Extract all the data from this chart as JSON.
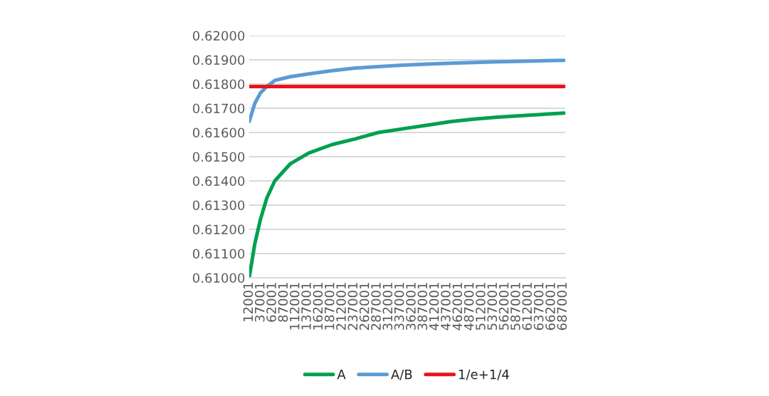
{
  "chart_data": {
    "type": "line",
    "x": [
      12001,
      24000,
      36000,
      50000,
      67000,
      100000,
      140000,
      190000,
      241000,
      290000,
      342000,
      395000,
      445000,
      495000,
      546000,
      620000,
      689000
    ],
    "series": [
      {
        "name": "A",
        "color": "#00a050",
        "values": [
          0.61,
          0.6114,
          0.6124,
          0.6133,
          0.614,
          0.6147,
          0.61515,
          0.6155,
          0.61574,
          0.616,
          0.61615,
          0.6163,
          0.61645,
          0.61655,
          0.61663,
          0.61672,
          0.6168
        ]
      },
      {
        "name": "A/B",
        "color": "#5b9bd5",
        "values": [
          0.61645,
          0.6172,
          0.61763,
          0.6179,
          0.61815,
          0.6183,
          0.61842,
          0.61855,
          0.61866,
          0.61872,
          0.61878,
          0.61882,
          0.61886,
          0.61889,
          0.61892,
          0.61895,
          0.61898
        ]
      },
      {
        "name": "1/e+1/4",
        "color": "#e8141c",
        "values": [
          0.6179,
          0.6179,
          0.6179,
          0.6179,
          0.6179,
          0.6179,
          0.6179,
          0.6179,
          0.6179,
          0.6179,
          0.6179,
          0.6179,
          0.6179,
          0.6179,
          0.6179,
          0.6179,
          0.6179
        ]
      }
    ],
    "xlim": [
      12001,
      692001
    ],
    "xticks": [
      12001,
      37001,
      62001,
      87001,
      112001,
      137001,
      162001,
      187001,
      212001,
      237001,
      262001,
      287001,
      312001,
      337001,
      362001,
      387001,
      412001,
      437001,
      462001,
      487001,
      512001,
      537001,
      562001,
      587001,
      612001,
      637001,
      662001,
      687001
    ],
    "ylim": [
      0.61,
      0.62
    ],
    "yticks": [
      {
        "value": 0.61,
        "label": "0.61000"
      },
      {
        "value": 0.611,
        "label": "0.61100"
      },
      {
        "value": 0.612,
        "label": "0.61200"
      },
      {
        "value": 0.613,
        "label": "0.61300"
      },
      {
        "value": 0.614,
        "label": "0.61400"
      },
      {
        "value": 0.615,
        "label": "0.61500"
      },
      {
        "value": 0.616,
        "label": "0.61600"
      },
      {
        "value": 0.617,
        "label": "0.61700"
      },
      {
        "value": 0.618,
        "label": "0.61800"
      },
      {
        "value": 0.619,
        "label": "0.61900"
      },
      {
        "value": 0.62,
        "label": "0.62000"
      }
    ],
    "grid": "y",
    "legend": "bottom",
    "marker": "none",
    "line_style": "solid"
  }
}
